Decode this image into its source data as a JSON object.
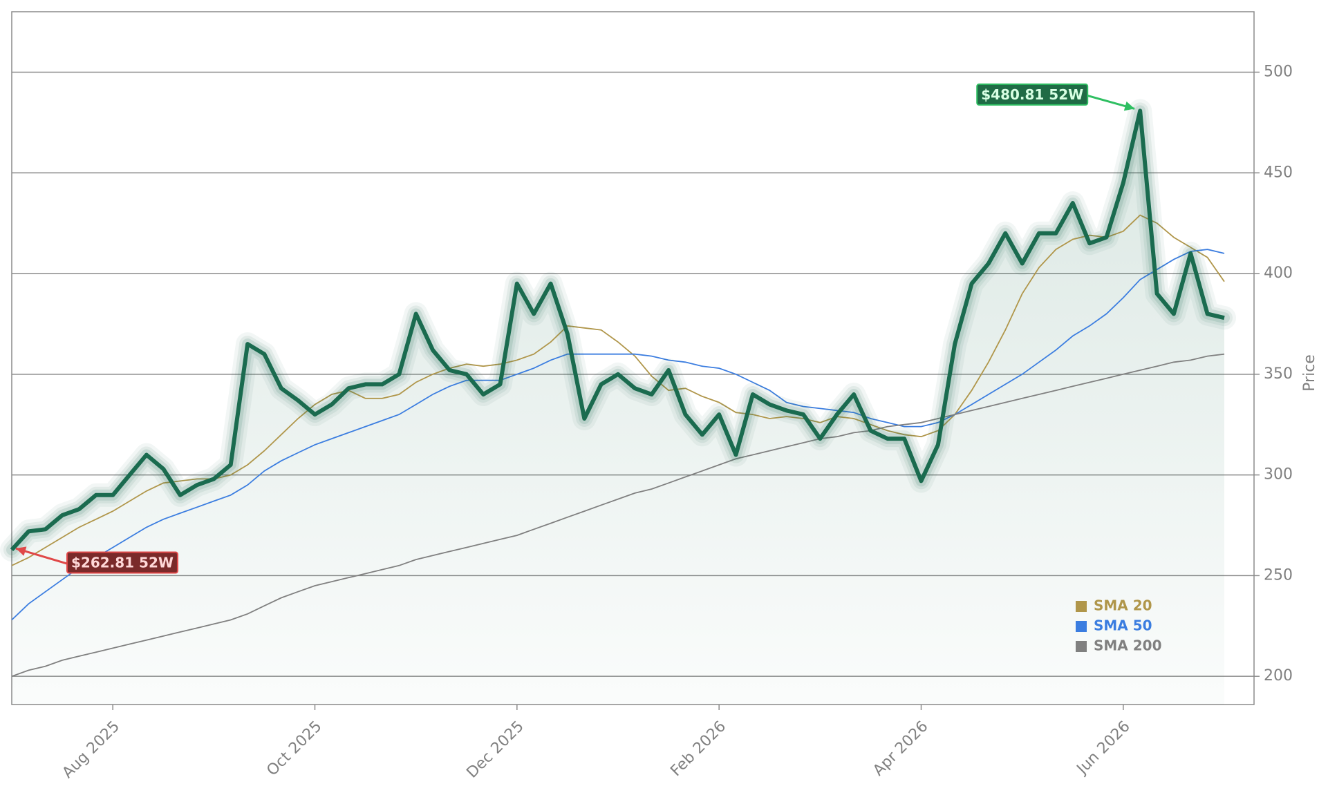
{
  "chart_data": {
    "type": "line",
    "y_label": "Price",
    "categories": [
      null,
      null,
      null,
      null,
      null,
      null,
      "Aug 2025",
      null,
      null,
      null,
      null,
      null,
      null,
      null,
      null,
      null,
      null,
      null,
      "Oct 2025",
      null,
      null,
      null,
      null,
      null,
      null,
      null,
      null,
      null,
      null,
      null,
      "Dec 2025",
      null,
      null,
      null,
      null,
      null,
      null,
      null,
      null,
      null,
      null,
      null,
      "Feb 2026",
      null,
      null,
      null,
      null,
      null,
      null,
      null,
      null,
      null,
      null,
      null,
      "Apr 2026",
      null,
      null,
      null,
      null,
      null,
      null,
      null,
      null,
      null,
      null,
      null,
      "Jun 2026",
      null,
      null,
      null,
      null,
      null,
      null
    ],
    "values": [
      262.81,
      272,
      273,
      280,
      283,
      290,
      290,
      300,
      310,
      303,
      290,
      295,
      298,
      305,
      365,
      360,
      343,
      337,
      330,
      335,
      343,
      345,
      345,
      350,
      380,
      362,
      352,
      350,
      340,
      345,
      395,
      380,
      395,
      370,
      328,
      345,
      350,
      343,
      340,
      352,
      330,
      320,
      330,
      310,
      340,
      335,
      332,
      330,
      318,
      330,
      340,
      322,
      318,
      318,
      297,
      315,
      365,
      395,
      405,
      420,
      405,
      420,
      420,
      435,
      415,
      418,
      445,
      480.81,
      390,
      380,
      410,
      380,
      378
    ],
    "color": "#1a6b4f",
    "high_label": "$480.81 52W",
    "low_label": "$262.81 52W",
    "series": [
      {
        "name": "SMA 20",
        "color": "#b0964a",
        "values": [
          255,
          259,
          264,
          269,
          274,
          278,
          282,
          287,
          292,
          296,
          297,
          298,
          298,
          300,
          305,
          312,
          320,
          328,
          335,
          340,
          342,
          338,
          338,
          340,
          346,
          350,
          353,
          355,
          354,
          355,
          357,
          360,
          366,
          374,
          373,
          372,
          366,
          359,
          349,
          342,
          343,
          339,
          336,
          331,
          330,
          328,
          329,
          328,
          326,
          329,
          328,
          325,
          322,
          320,
          319,
          322,
          330,
          342,
          356,
          372,
          390,
          403,
          412,
          417,
          419,
          418,
          421,
          429,
          425,
          418,
          413,
          408,
          396
        ]
      },
      {
        "name": "SMA 50",
        "color": "#3b7de0",
        "values": [
          228,
          236,
          242,
          248,
          254,
          259,
          264,
          269,
          274,
          278,
          281,
          284,
          287,
          290,
          295,
          302,
          307,
          311,
          315,
          318,
          321,
          324,
          327,
          330,
          335,
          340,
          344,
          347,
          347,
          347,
          350,
          353,
          357,
          360,
          360,
          360,
          360,
          360,
          359,
          357,
          356,
          354,
          353,
          350,
          346,
          342,
          336,
          334,
          333,
          332,
          331,
          328,
          326,
          324,
          324,
          326,
          330,
          335,
          340,
          345,
          350,
          356,
          362,
          369,
          374,
          380,
          388,
          397,
          402,
          407,
          411,
          412,
          410
        ]
      },
      {
        "name": "SMA 200",
        "color": "#808080",
        "values": [
          200,
          203,
          205,
          208,
          210,
          212,
          214,
          216,
          218,
          220,
          222,
          224,
          226,
          228,
          231,
          235,
          239,
          242,
          245,
          247,
          249,
          251,
          253,
          255,
          258,
          260,
          262,
          264,
          266,
          268,
          270,
          273,
          276,
          279,
          282,
          285,
          288,
          291,
          293,
          296,
          299,
          302,
          305,
          308,
          310,
          312,
          314,
          316,
          318,
          319,
          321,
          322,
          324,
          325,
          326,
          328,
          330,
          332,
          334,
          336,
          338,
          340,
          342,
          344,
          346,
          348,
          350,
          352,
          354,
          356,
          357,
          359,
          360
        ]
      }
    ],
    "ylim": [
      186,
      530
    ],
    "yticks": [
      200,
      250,
      300,
      350,
      400,
      450,
      500
    ],
    "grid": true,
    "legend": "lower right"
  }
}
